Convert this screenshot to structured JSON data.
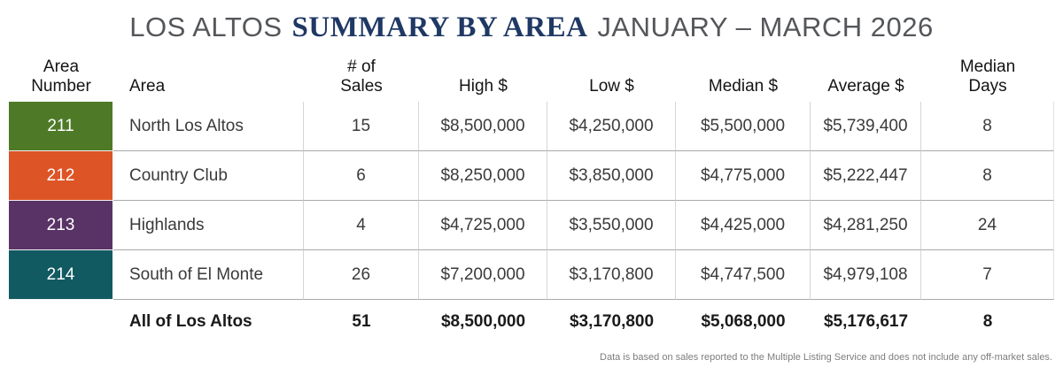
{
  "title": {
    "prefix": "LOS ALTOS",
    "emphasis": "SUMMARY BY AREA",
    "suffix": "JANUARY – MARCH 2026",
    "prefix_color": "#54565a",
    "emphasis_color": "#1f3864"
  },
  "table": {
    "columns": [
      "Area\nNumber",
      "Area",
      "# of\nSales",
      "High $",
      "Low $",
      "Median $",
      "Average $",
      "Median\nDays"
    ],
    "rows": [
      {
        "area_number": "211",
        "color": "#4e7a28",
        "area": "North Los Altos",
        "sales": "15",
        "high": "$8,500,000",
        "low": "$4,250,000",
        "median": "$5,500,000",
        "average": "$5,739,400",
        "median_days": "8"
      },
      {
        "area_number": "212",
        "color": "#dd5426",
        "area": "Country Club",
        "sales": "6",
        "high": "$8,250,000",
        "low": "$3,850,000",
        "median": "$4,775,000",
        "average": "$5,222,447",
        "median_days": "8"
      },
      {
        "area_number": "213",
        "color": "#5a3366",
        "area": "Highlands",
        "sales": "4",
        "high": "$4,725,000",
        "low": "$3,550,000",
        "median": "$4,425,000",
        "average": "$4,281,250",
        "median_days": "24"
      },
      {
        "area_number": "214",
        "color": "#125a61",
        "area": "South of El Monte",
        "sales": "26",
        "high": "$7,200,000",
        "low": "$3,170,800",
        "median": "$4,747,500",
        "average": "$4,979,108",
        "median_days": "7"
      }
    ],
    "summary": {
      "area": "All of Los Altos",
      "sales": "51",
      "high": "$8,500,000",
      "low": "$3,170,800",
      "median": "$5,068,000",
      "average": "$5,176,617",
      "median_days": "8"
    }
  },
  "footnote": "Data is based on sales reported to the Multiple Listing Service and does not include any off-market sales."
}
